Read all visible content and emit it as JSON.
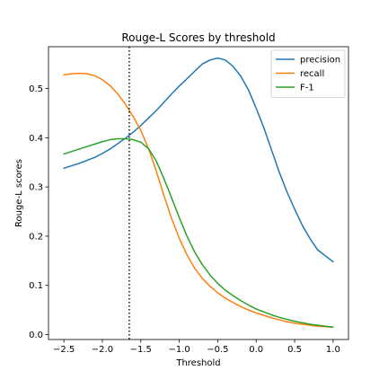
{
  "chart_data": {
    "type": "line",
    "title": "Rouge-L Scores by threshold",
    "xlabel": "Threshold",
    "ylabel": "Rouge-L scores",
    "xlim": [
      -2.7,
      1.2
    ],
    "ylim": [
      -0.01,
      0.585
    ],
    "xticks": [
      -2.5,
      -2.0,
      -1.5,
      -1.0,
      -0.5,
      0.0,
      0.5,
      1.0
    ],
    "xtick_labels": [
      "−2.5",
      "−2.0",
      "−1.5",
      "−1.0",
      "−0.5",
      "0.0",
      "0.5",
      "1.0"
    ],
    "yticks": [
      0.0,
      0.1,
      0.2,
      0.3,
      0.4,
      0.5
    ],
    "ytick_labels": [
      "0.0",
      "0.1",
      "0.2",
      "0.3",
      "0.4",
      "0.5"
    ],
    "grid": false,
    "legend_position": "top-right",
    "vline": {
      "x": -1.65,
      "style": "dotted",
      "color": "#000000"
    },
    "x": [
      -2.5,
      -2.4,
      -2.3,
      -2.2,
      -2.1,
      -2.0,
      -1.9,
      -1.8,
      -1.7,
      -1.6,
      -1.5,
      -1.4,
      -1.3,
      -1.2,
      -1.1,
      -1.0,
      -0.9,
      -0.8,
      -0.7,
      -0.6,
      -0.5,
      -0.4,
      -0.3,
      -0.2,
      -0.1,
      0.0,
      0.1,
      0.2,
      0.3,
      0.4,
      0.5,
      0.6,
      0.7,
      0.8,
      0.9,
      1.0
    ],
    "series": [
      {
        "name": "precision",
        "color": "#1f77b4",
        "values": [
          0.338,
          0.343,
          0.348,
          0.354,
          0.36,
          0.368,
          0.377,
          0.388,
          0.399,
          0.411,
          0.425,
          0.44,
          0.455,
          0.472,
          0.489,
          0.505,
          0.52,
          0.535,
          0.55,
          0.558,
          0.562,
          0.558,
          0.545,
          0.525,
          0.497,
          0.46,
          0.42,
          0.375,
          0.33,
          0.29,
          0.255,
          0.222,
          0.195,
          0.172,
          0.16,
          0.148
        ]
      },
      {
        "name": "recall",
        "color": "#ff7f0e",
        "values": [
          0.528,
          0.53,
          0.531,
          0.53,
          0.526,
          0.518,
          0.506,
          0.489,
          0.468,
          0.443,
          0.415,
          0.378,
          0.333,
          0.283,
          0.236,
          0.196,
          0.162,
          0.135,
          0.114,
          0.098,
          0.085,
          0.074,
          0.065,
          0.057,
          0.05,
          0.044,
          0.039,
          0.034,
          0.03,
          0.026,
          0.023,
          0.021,
          0.019,
          0.017,
          0.016,
          0.015
        ]
      },
      {
        "name": "F-1",
        "color": "#2ca02c",
        "values": [
          0.367,
          0.372,
          0.377,
          0.382,
          0.387,
          0.392,
          0.396,
          0.398,
          0.398,
          0.396,
          0.391,
          0.378,
          0.353,
          0.317,
          0.278,
          0.238,
          0.2,
          0.168,
          0.142,
          0.121,
          0.104,
          0.09,
          0.079,
          0.069,
          0.06,
          0.052,
          0.046,
          0.04,
          0.035,
          0.031,
          0.027,
          0.024,
          0.021,
          0.019,
          0.017,
          0.015
        ]
      }
    ]
  }
}
